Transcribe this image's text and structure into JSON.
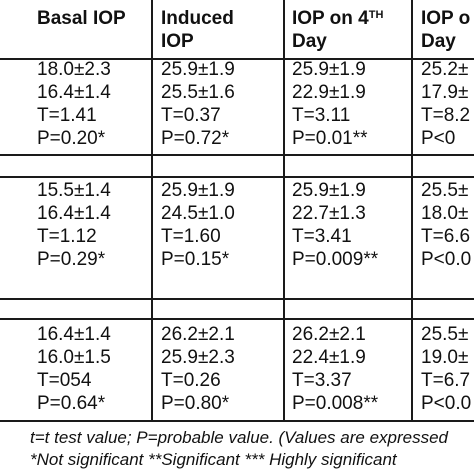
{
  "headers": [
    {
      "line1": "Basal IOP",
      "line2": ""
    },
    {
      "line1": "Induced",
      "line2": "IOP"
    },
    {
      "line1": "IOP on 4",
      "sup": "TH",
      "line2": "Day"
    },
    {
      "line1": "IOP o",
      "line2": "Day"
    }
  ],
  "groups": [
    {
      "rows": [
        [
          "18.0±2.3",
          "25.9±1.9",
          "25.9±1.9",
          "25.2±"
        ],
        [
          "16.4±1.4",
          "25.5±1.6",
          "22.9±1.9",
          "17.9±"
        ],
        [
          "T=1.41",
          "T=0.37",
          "T=3.11",
          "T=8.2"
        ],
        [
          "P=0.20*",
          "P=0.72*",
          "P=0.01**",
          "P<0"
        ]
      ]
    },
    {
      "rows": [
        [
          "15.5±1.4",
          "25.9±1.9",
          "25.9±1.9",
          "25.5±"
        ],
        [
          "16.4±1.4",
          "24.5±1.0",
          "22.7±1.3",
          "18.0±"
        ],
        [
          "T=1.12",
          "T=1.60",
          "T=3.41",
          "T=6.6"
        ],
        [
          "P=0.29*",
          "P=0.15*",
          "P=0.009**",
          "P<0.0"
        ]
      ]
    },
    {
      "rows": [
        [
          "16.4±1.4",
          "26.2±2.1",
          "26.2±2.1",
          "25.5±"
        ],
        [
          "16.0±1.5",
          "25.9±2.3",
          "22.4±1.9",
          "19.0±"
        ],
        [
          "T=054",
          "T=0.26",
          "T=3.37",
          "T=6.7"
        ],
        [
          "P=0.64*",
          "P=0.80*",
          "P=0.008**",
          "P<0.0"
        ]
      ]
    }
  ],
  "footnotes": [
    "t=t test value; P=probable value. (Values are expressed",
    "*Not significant **Significant *** Highly significant"
  ]
}
